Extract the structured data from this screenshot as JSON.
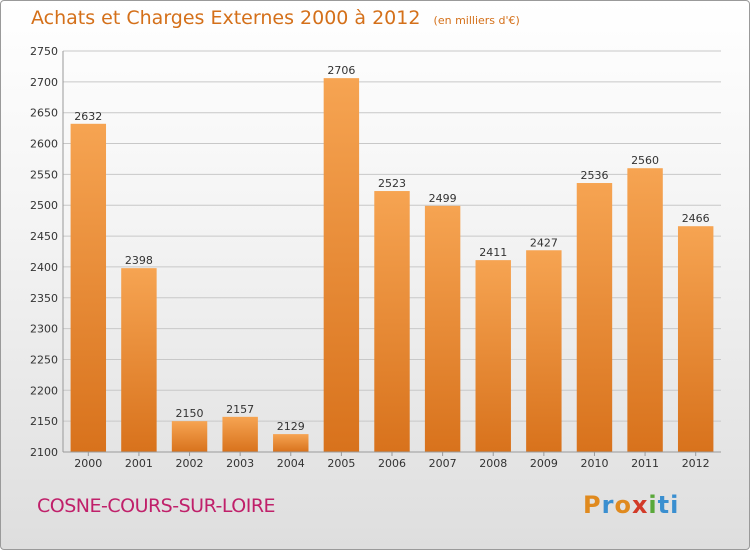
{
  "header": {
    "title": "Achats et Charges Externes 2000 à 2012",
    "unit": "(en milliers d'€)"
  },
  "footer": {
    "city": "COSNE-COURS-SUR-LOIRE",
    "logo": [
      "P",
      "r",
      "o",
      "x",
      "i",
      "ti"
    ]
  },
  "colors": {
    "bar_light": "#f6a452",
    "bar_dark": "#d8721c",
    "title": "#d4701a",
    "city": "#c0206a"
  },
  "chart_data": {
    "type": "bar",
    "categories": [
      "2000",
      "2001",
      "2002",
      "2003",
      "2004",
      "2005",
      "2006",
      "2007",
      "2008",
      "2009",
      "2010",
      "2011",
      "2012"
    ],
    "values": [
      2632,
      2398,
      2150,
      2157,
      2129,
      2706,
      2523,
      2499,
      2411,
      2427,
      2536,
      2560,
      2466
    ],
    "title": "Achats et Charges Externes 2000 à 2012",
    "ylim": [
      2100,
      2750
    ],
    "yticks": [
      2100,
      2150,
      2200,
      2250,
      2300,
      2350,
      2400,
      2450,
      2500,
      2550,
      2600,
      2650,
      2700,
      2750
    ],
    "grid": true,
    "data_labels": true
  }
}
